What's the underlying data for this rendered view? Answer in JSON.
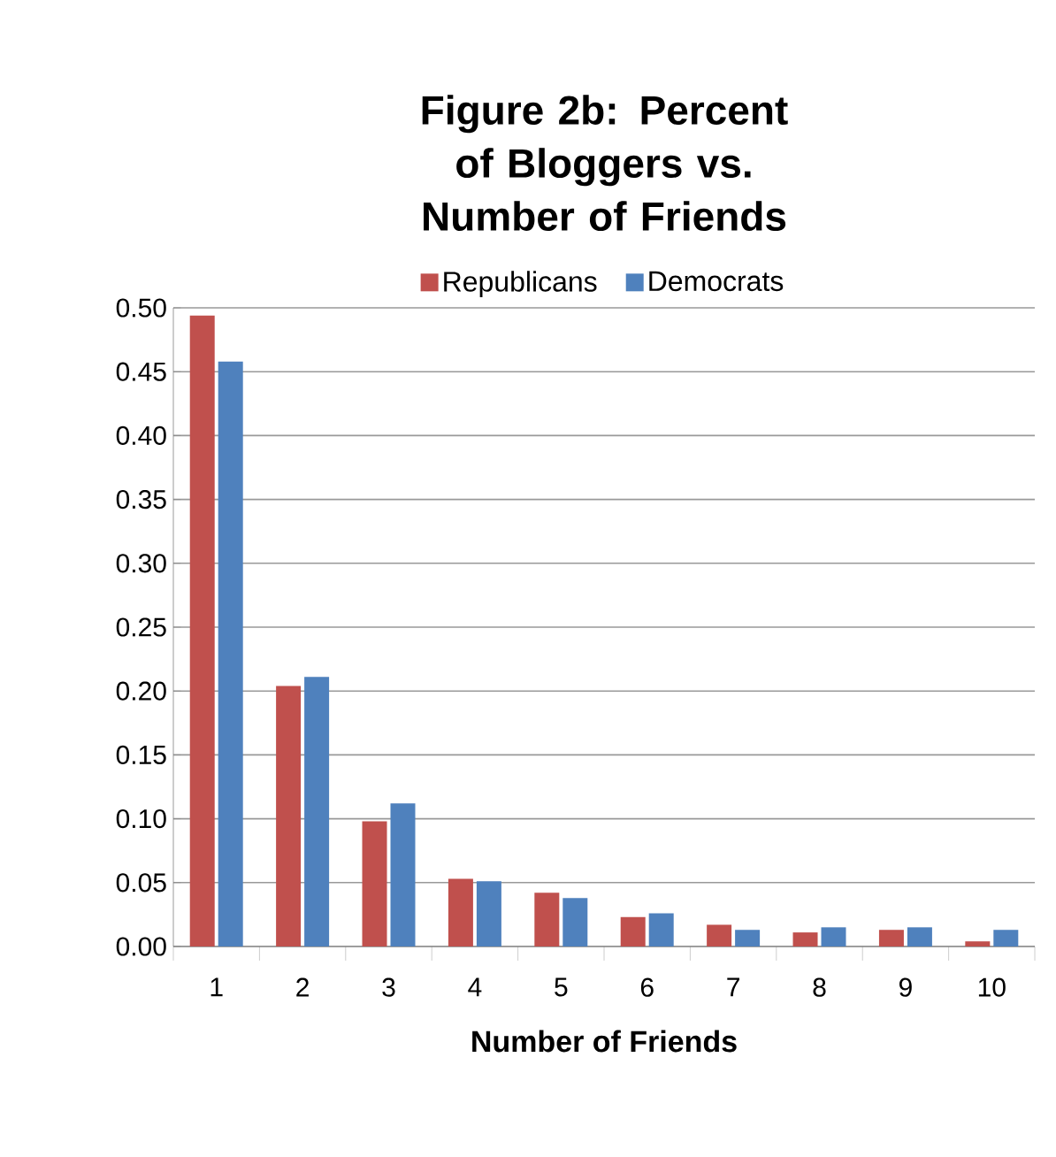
{
  "chart_data": {
    "type": "bar",
    "title": "Figure 2b: Percent of Bloggers vs. Number of Friends",
    "xlabel": "Number of Friends",
    "categories": [
      "1",
      "2",
      "3",
      "4",
      "5",
      "6",
      "7",
      "8",
      "9",
      "10"
    ],
    "series": [
      {
        "name": "Republicans",
        "color": "#c0504d",
        "values": [
          0.494,
          0.204,
          0.098,
          0.053,
          0.042,
          0.023,
          0.017,
          0.011,
          0.013,
          0.004
        ]
      },
      {
        "name": "Democrats",
        "color": "#4f81bd",
        "values": [
          0.458,
          0.211,
          0.112,
          0.051,
          0.038,
          0.026,
          0.013,
          0.015,
          0.015,
          0.013
        ]
      }
    ],
    "ylim": [
      0,
      0.5
    ],
    "yticks": [
      {
        "value": 0,
        "label": "0.00"
      },
      {
        "value": 0.05,
        "label": "0.05"
      },
      {
        "value": 0.1,
        "label": "0.10"
      },
      {
        "value": 0.15,
        "label": "0.15"
      },
      {
        "value": 0.2,
        "label": "0.20"
      },
      {
        "value": 0.25,
        "label": "0.25"
      },
      {
        "value": 0.3,
        "label": "0.30"
      },
      {
        "value": 0.35,
        "label": "0.35"
      },
      {
        "value": 0.4,
        "label": "0.40"
      },
      {
        "value": 0.45,
        "label": "0.45"
      },
      {
        "value": 0.5,
        "label": "0.50"
      }
    ],
    "grid": "y",
    "legend": "top"
  }
}
